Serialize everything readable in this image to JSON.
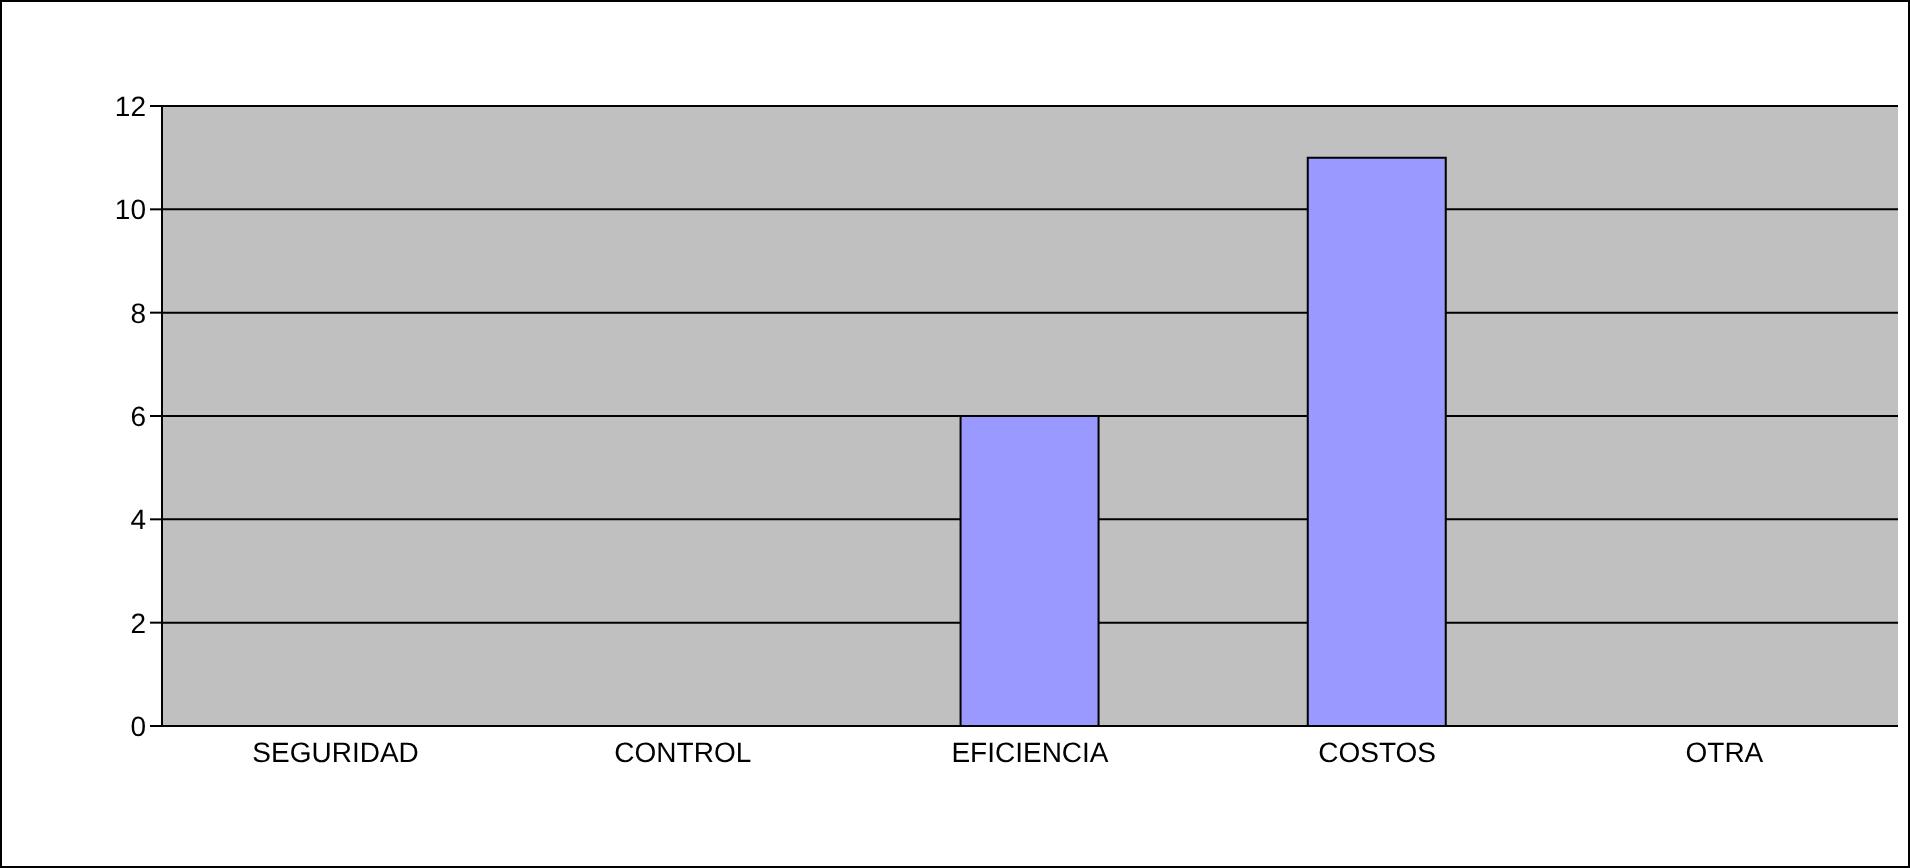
{
  "chart_data": {
    "type": "bar",
    "categories": [
      "SEGURIDAD",
      "CONTROL",
      "EFICIENCIA",
      "COSTOS",
      "OTRA"
    ],
    "values": [
      0,
      0,
      6,
      11,
      0
    ],
    "color": "#9999ff",
    "ylim": [
      0,
      12
    ],
    "yticks": [
      0,
      2,
      4,
      6,
      8,
      10,
      12
    ],
    "grid": "y",
    "legend": false
  }
}
